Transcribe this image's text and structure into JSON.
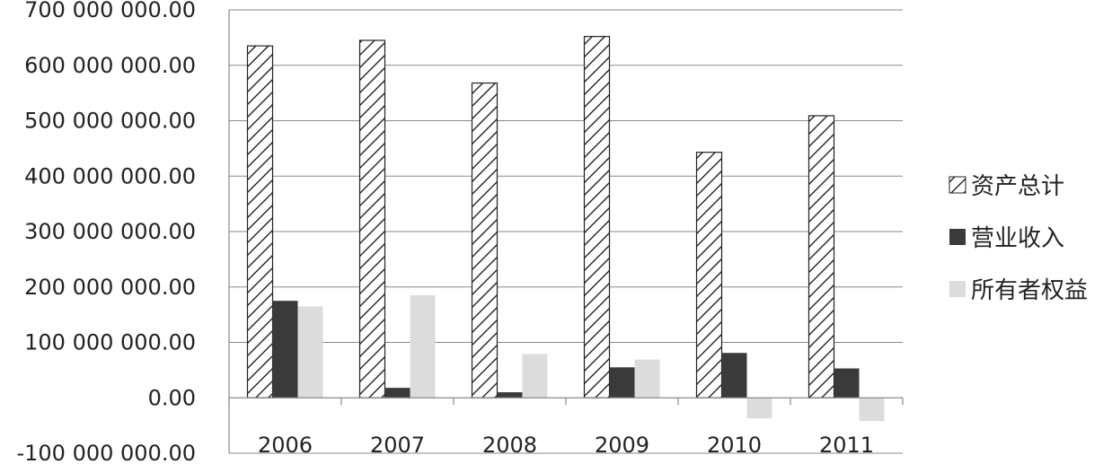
{
  "chart_data": {
    "type": "bar",
    "title": "",
    "xlabel": "",
    "ylabel": "",
    "categories": [
      "2006",
      "2007",
      "2008",
      "2009",
      "2010",
      "2011"
    ],
    "series": [
      {
        "name": "资产总计",
        "values": [
          635000000,
          645000000,
          568000000,
          652000000,
          443000000,
          509000000
        ],
        "color": "#ffffff",
        "pattern": "diagonal-hatch"
      },
      {
        "name": "营业收入",
        "values": [
          175000000,
          18000000,
          10000000,
          55000000,
          81000000,
          53000000
        ],
        "color": "#3a3a3a"
      },
      {
        "name": "所有者权益",
        "values": [
          165000000,
          185000000,
          79000000,
          69000000,
          -37000000,
          -42000000
        ],
        "color": "#dcdcdc"
      }
    ],
    "ylim": [
      -100000000,
      700000000
    ],
    "yticks": [
      -100000000,
      0,
      100000000,
      200000000,
      300000000,
      400000000,
      500000000,
      600000000,
      700000000
    ],
    "ytick_labels": [
      "-100 000 000.00",
      "0.00",
      "100 000 000.00",
      "200 000 000.00",
      "300 000 000.00",
      "400 000 000.00",
      "500 000 000.00",
      "600 000 000.00",
      "700 000 000.00"
    ],
    "grid": true,
    "legend_position": "right"
  }
}
